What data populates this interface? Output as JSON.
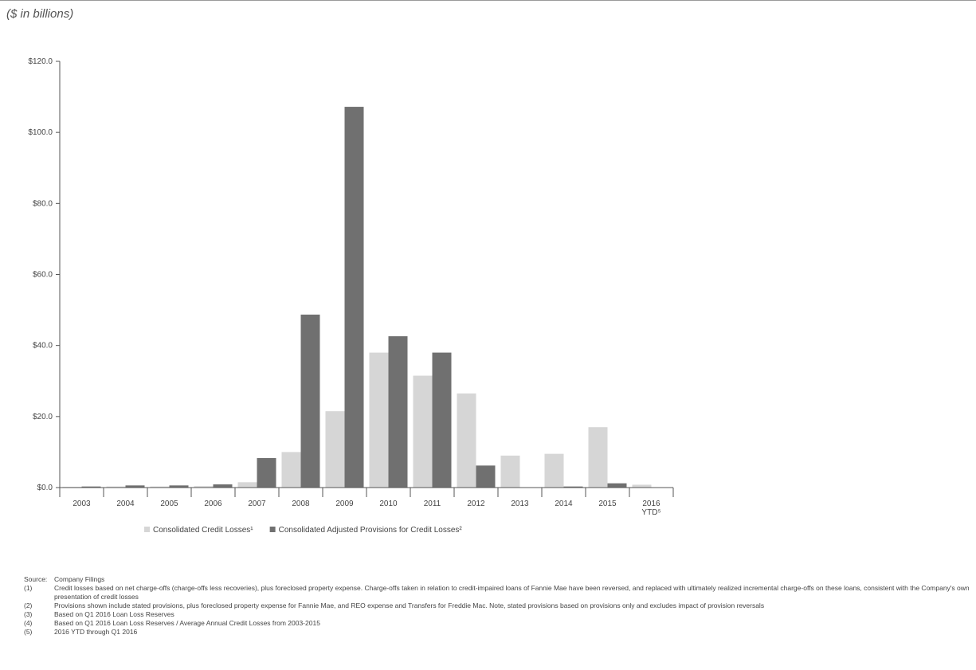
{
  "units_label": "($ in billions)",
  "colors": {
    "series1": "#d6d6d6",
    "series2": "#707070",
    "axis": "#555555"
  },
  "chart_data": {
    "type": "bar",
    "categories": [
      "2003",
      "2004",
      "2005",
      "2006",
      "2007",
      "2008",
      "2009",
      "2010",
      "2011",
      "2012",
      "2013",
      "2014",
      "2015",
      "2016\nYTD⁵"
    ],
    "series": [
      {
        "name": "Consolidated Credit Losses¹",
        "values": [
          0.2,
          0.3,
          0.3,
          0.4,
          1.5,
          10.0,
          21.5,
          38.0,
          31.5,
          26.5,
          9.0,
          9.5,
          17.0,
          0.8
        ]
      },
      {
        "name": "Consolidated Adjusted Provisions for Credit Losses²",
        "values": [
          0.3,
          0.6,
          0.6,
          0.9,
          8.3,
          48.7,
          107.2,
          42.6,
          38.0,
          6.2,
          0.0,
          0.3,
          1.2,
          0.0
        ]
      }
    ],
    "yticks": [
      "$0.0",
      "$20.0",
      "$40.0",
      "$60.0",
      "$80.0",
      "$100.0",
      "$120.0"
    ],
    "ylim": [
      0,
      120
    ],
    "legend": "bottom"
  },
  "footnotes": [
    {
      "id": "Source:",
      "text": "Company Filings"
    },
    {
      "id": "(1)",
      "text": "Credit losses based on net charge-offs (charge-offs less recoveries), plus foreclosed property expense.  Charge-offs taken in relation to credit-impaired loans of Fannie Mae have been reversed, and replaced with ultimately realized incremental charge-offs on these loans, consistent with the Company's own presentation of credit losses"
    },
    {
      "id": "(2)",
      "text": "Provisions shown include stated provisions, plus foreclosed property expense for Fannie Mae, and REO expense and Transfers for Freddie Mac. Note, stated provisions based on provisions only and excludes impact of provision reversals"
    },
    {
      "id": "(3)",
      "text": "Based on Q1 2016 Loan Loss Reserves"
    },
    {
      "id": "(4)",
      "text": "Based on Q1 2016 Loan Loss Reserves / Average Annual Credit Losses from 2003-2015"
    },
    {
      "id": "(5)",
      "text": "2016 YTD through Q1 2016"
    }
  ]
}
